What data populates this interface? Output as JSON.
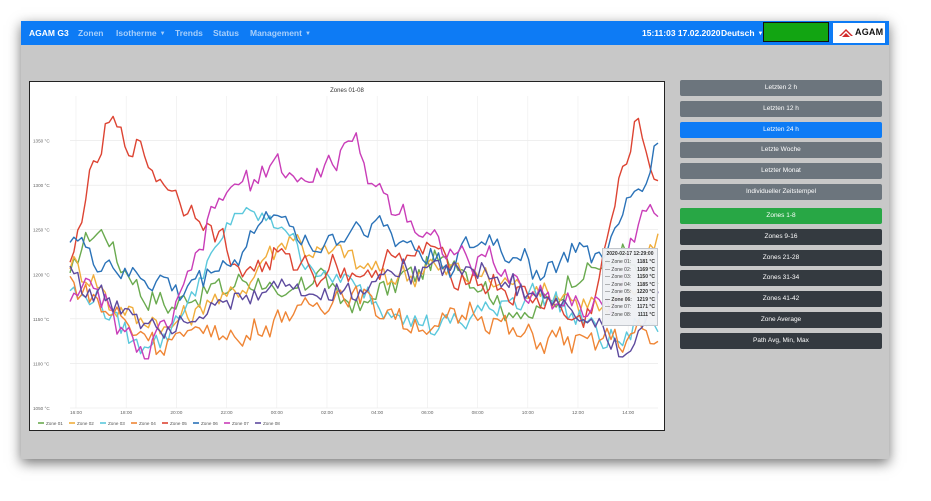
{
  "navbar": {
    "brand": "AGAM G3",
    "items": [
      {
        "label": "Zonen",
        "dropdown": false
      },
      {
        "label": "Isotherme",
        "dropdown": true
      },
      {
        "label": "Trends",
        "dropdown": false
      },
      {
        "label": "Status",
        "dropdown": false
      },
      {
        "label": "Management",
        "dropdown": true
      }
    ],
    "datetime": "15:11:03 17.02.2020",
    "language": "Deutsch",
    "logo_text": "AGAM",
    "status_color": "#12a512"
  },
  "time_buttons": [
    {
      "label": "Letzten 2 h",
      "active": false
    },
    {
      "label": "Letzten 12 h",
      "active": false
    },
    {
      "label": "Letzten 24 h",
      "active": true
    },
    {
      "label": "Letzte Woche",
      "active": false
    },
    {
      "label": "Letzter Monat",
      "active": false
    },
    {
      "label": "Individueller Zeitstempel",
      "active": false
    }
  ],
  "zone_buttons": [
    {
      "label": "Zones 1-8",
      "active": true
    },
    {
      "label": "Zones 9-16",
      "active": false
    },
    {
      "label": "Zones 21-28",
      "active": false
    },
    {
      "label": "Zones 31-34",
      "active": false
    },
    {
      "label": "Zones 41-42",
      "active": false
    },
    {
      "label": "Zone Average",
      "active": false
    },
    {
      "label": "Path Avg, Min, Max",
      "active": false
    }
  ],
  "colors": {
    "primary": "#0d7bf5",
    "secondary": "#6c757d",
    "success": "#28a745",
    "dark": "#343a40"
  },
  "chart_data": {
    "type": "line",
    "title": "Zones 01-08",
    "ylim": [
      1050,
      1400
    ],
    "y_ticks": [
      "1050 °C",
      "1100 °C",
      "1150 °C",
      "1200 °C",
      "1250 °C",
      "1300 °C",
      "1350 °C"
    ],
    "x_ticks": [
      "16:00",
      "18:00",
      "20:00",
      "22:00",
      "00:00",
      "02:00",
      "04:00",
      "06:00",
      "08:00",
      "10:00",
      "12:00",
      "14:00"
    ],
    "grid": true,
    "legend_position": "bottom-left",
    "series": [
      {
        "name": "Zone 01",
        "color": "#6aaa4f",
        "values": [
          1193,
          1250,
          1240,
          1200,
          1175,
          1165,
          1170,
          1180,
          1185,
          1190,
          1195,
          1170,
          1180,
          1205,
          1180,
          1160,
          1175,
          1190,
          1200,
          1210,
          1220,
          1200,
          1180,
          1160,
          1150,
          1165,
          1180,
          1205,
          1205,
          1225,
          1200,
          1190
        ]
      },
      {
        "name": "Zone 02",
        "color": "#f0ad3c",
        "values": [
          1210,
          1200,
          1170,
          1155,
          1150,
          1140,
          1150,
          1165,
          1175,
          1180,
          1210,
          1235,
          1240,
          1220,
          1230,
          1215,
          1205,
          1195,
          1200,
          1210,
          1205,
          1200,
          1195,
          1190,
          1185,
          1180,
          1175,
          1170,
          1160,
          1165,
          1190,
          1250
        ]
      },
      {
        "name": "Zone 03",
        "color": "#5bc8dc",
        "values": [
          1180,
          1175,
          1160,
          1130,
          1120,
          1130,
          1160,
          1200,
          1240,
          1275,
          1260,
          1260,
          1230,
          1200,
          1195,
          1190,
          1170,
          1160,
          1150,
          1140,
          1145,
          1150,
          1160,
          1170,
          1175,
          1180,
          1160,
          1150,
          1130,
          1120,
          1150,
          1140
        ]
      },
      {
        "name": "Zone 04",
        "color": "#ef8535",
        "values": [
          1195,
          1175,
          1160,
          1145,
          1130,
          1120,
          1130,
          1140,
          1135,
          1125,
          1140,
          1150,
          1160,
          1165,
          1175,
          1180,
          1165,
          1155,
          1145,
          1135,
          1150,
          1160,
          1150,
          1140,
          1130,
          1125,
          1130,
          1120,
          1130,
          1125,
          1135,
          1125
        ]
      },
      {
        "name": "Zone 05",
        "color": "#dd4433",
        "values": [
          1210,
          1300,
          1370,
          1350,
          1330,
          1300,
          1280,
          1260,
          1240,
          1200,
          1210,
          1220,
          1215,
          1200,
          1210,
          1200,
          1195,
          1230,
          1210,
          1240,
          1200,
          1195,
          1190,
          1180,
          1175,
          1170,
          1160,
          1140,
          1200,
          1310,
          1370,
          1300
        ]
      },
      {
        "name": "Zone 06",
        "color": "#2a72b8",
        "values": [
          1250,
          1220,
          1210,
          1200,
          1195,
          1190,
          1180,
          1200,
          1210,
          1220,
          1260,
          1270,
          1240,
          1230,
          1240,
          1250,
          1260,
          1245,
          1230,
          1220,
          1210,
          1230,
          1240,
          1225,
          1215,
          1200,
          1220,
          1230,
          1215,
          1260,
          1300,
          1340
        ]
      },
      {
        "name": "Zone 07",
        "color": "#c93db8",
        "values": [
          1175,
          1190,
          1160,
          1130,
          1110,
          1140,
          1180,
          1240,
          1290,
          1300,
          1310,
          1330,
          1300,
          1310,
          1330,
          1350,
          1300,
          1280,
          1260,
          1240,
          1230,
          1210,
          1220,
          1200,
          1180,
          1175,
          1170,
          1165,
          1160,
          1180,
          1270,
          1260
        ]
      },
      {
        "name": "Zone 08",
        "color": "#5d4a9e",
        "values": [
          1205,
          1180,
          1170,
          1160,
          1150,
          1140,
          1150,
          1160,
          1165,
          1170,
          1180,
          1190,
          1185,
          1175,
          1185,
          1175,
          1195,
          1205,
          1200,
          1215,
          1210,
          1205,
          1200,
          1190,
          1180,
          1175,
          1165,
          1150,
          1140,
          1110,
          1130,
          1180
        ]
      }
    ],
    "tooltip": {
      "title": "2020-02-17 12:29:00",
      "rows": [
        {
          "label": "Zone 01:",
          "value": "1181 °C",
          "highlight": false
        },
        {
          "label": "Zone 02:",
          "value": "1169 °C",
          "highlight": false
        },
        {
          "label": "Zone 03:",
          "value": "1150 °C",
          "highlight": false
        },
        {
          "label": "Zone 04:",
          "value": "1185 °C",
          "highlight": false
        },
        {
          "label": "Zone 05:",
          "value": "1220 °C",
          "highlight": false
        },
        {
          "label": "Zone 06:",
          "value": "1219 °C",
          "highlight": true
        },
        {
          "label": "Zone 07:",
          "value": "1171 °C",
          "highlight": false
        },
        {
          "label": "Zone 08:",
          "value": "1111 °C",
          "highlight": false
        }
      ]
    }
  }
}
